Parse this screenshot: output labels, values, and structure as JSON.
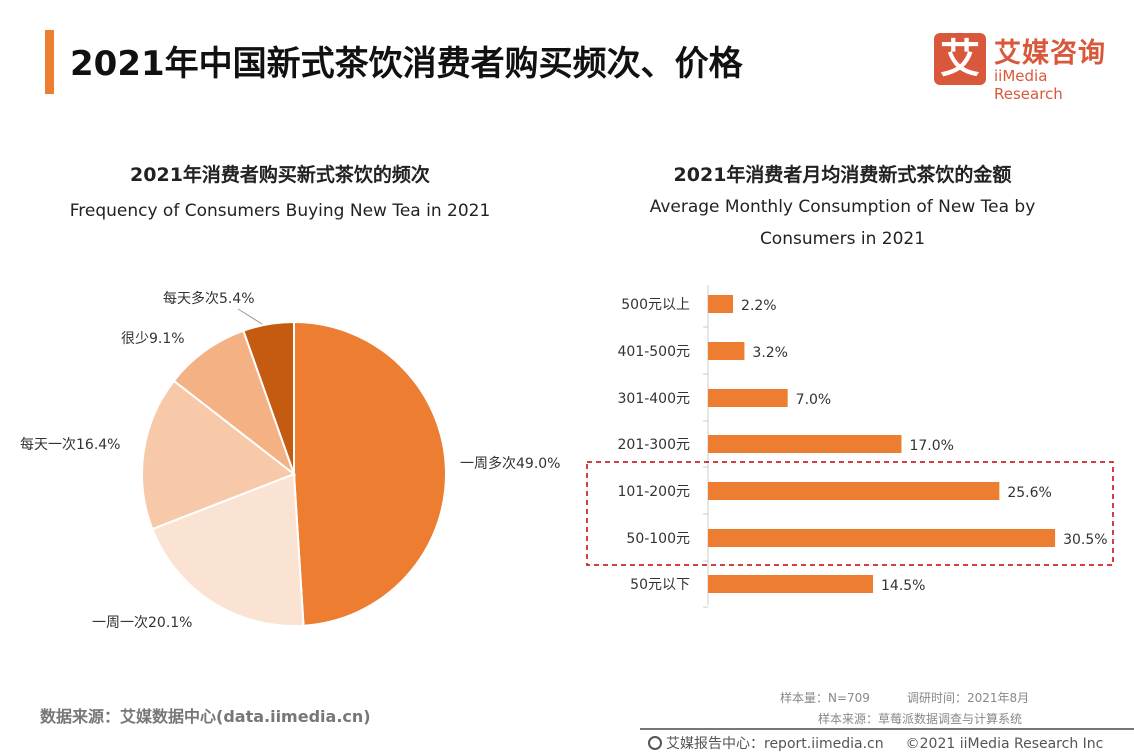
{
  "header": {
    "title": "2021年中国新式茶饮消费者购买频次、价格",
    "logo_mark": "艾",
    "logo_cn": "艾媒咨询",
    "logo_en": "iiMedia Research",
    "accent": "#ED7D31",
    "logo_color": "#D9583B"
  },
  "chart_data": [
    {
      "type": "pie",
      "title": "2021年消费者购买新式茶饮的频次",
      "subtitle": "Frequency of Consumers Buying New Tea in 2021",
      "slices": [
        {
          "label": "一周多次",
          "value": 49.0,
          "color": "#ED7D31"
        },
        {
          "label": "一周一次",
          "value": 20.1,
          "color": "#FBE3D4"
        },
        {
          "label": "每天一次",
          "value": 16.4,
          "color": "#F8C9A9"
        },
        {
          "label": "很少",
          "value": 9.1,
          "color": "#F4B183"
        },
        {
          "label": "每天多次",
          "value": 5.4,
          "color": "#C55A11"
        }
      ],
      "unit": "%"
    },
    {
      "type": "bar",
      "orientation": "horizontal",
      "title": "2021年消费者月均消费新式茶饮的金额",
      "subtitle": "Average Monthly Consumption of New Tea by Consumers in 2021",
      "categories": [
        "500元以上",
        "401-500元",
        "301-400元",
        "201-300元",
        "101-200元",
        "50-100元",
        "50元以下"
      ],
      "values": [
        2.2,
        3.2,
        7.0,
        17.0,
        25.6,
        30.5,
        14.5
      ],
      "unit": "%",
      "color": "#ED7D31",
      "highlighted": [
        "101-200元",
        "50-100元"
      ],
      "highlight_color": "#C00000"
    }
  ],
  "footer": {
    "source": "数据来源：艾媒数据中心(data.iimedia.cn)",
    "sample": "样本量：N=709",
    "survey_time": "调研时间：2021年8月",
    "sample_source": "样本来源：草莓派数据调查与计算系统",
    "report_center": "艾媒报告中心：report.iimedia.cn",
    "copyright": "©2021  iiMedia Research  Inc"
  }
}
